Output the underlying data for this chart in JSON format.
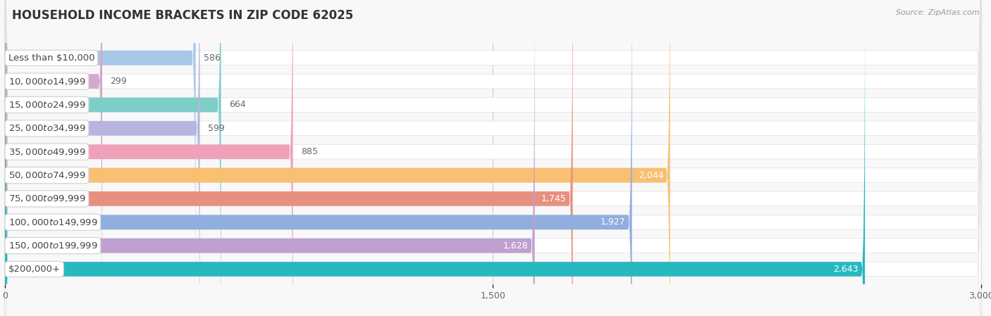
{
  "title": "HOUSEHOLD INCOME BRACKETS IN ZIP CODE 62025",
  "source": "Source: ZipAtlas.com",
  "categories": [
    "Less than $10,000",
    "$10,000 to $14,999",
    "$15,000 to $24,999",
    "$25,000 to $34,999",
    "$35,000 to $49,999",
    "$50,000 to $74,999",
    "$75,000 to $99,999",
    "$100,000 to $149,999",
    "$150,000 to $199,999",
    "$200,000+"
  ],
  "values": [
    586,
    299,
    664,
    599,
    885,
    2044,
    1745,
    1927,
    1628,
    2643
  ],
  "bar_colors": [
    "#a8c8e8",
    "#d4a8cc",
    "#7ecec8",
    "#b8b4e0",
    "#f0a0b8",
    "#f8c070",
    "#e89080",
    "#90aede",
    "#c0a0d0",
    "#28b8c0"
  ],
  "value_inside_color": "#ffffff",
  "value_outside_color": "#666666",
  "value_threshold": 1400,
  "xlim": [
    0,
    3000
  ],
  "xticks": [
    0,
    1500,
    3000
  ],
  "background_color": "#f8f8f8",
  "row_bg_color": "#ebebeb",
  "title_fontsize": 12,
  "source_fontsize": 8,
  "label_fontsize": 9.5,
  "value_fontsize": 9
}
